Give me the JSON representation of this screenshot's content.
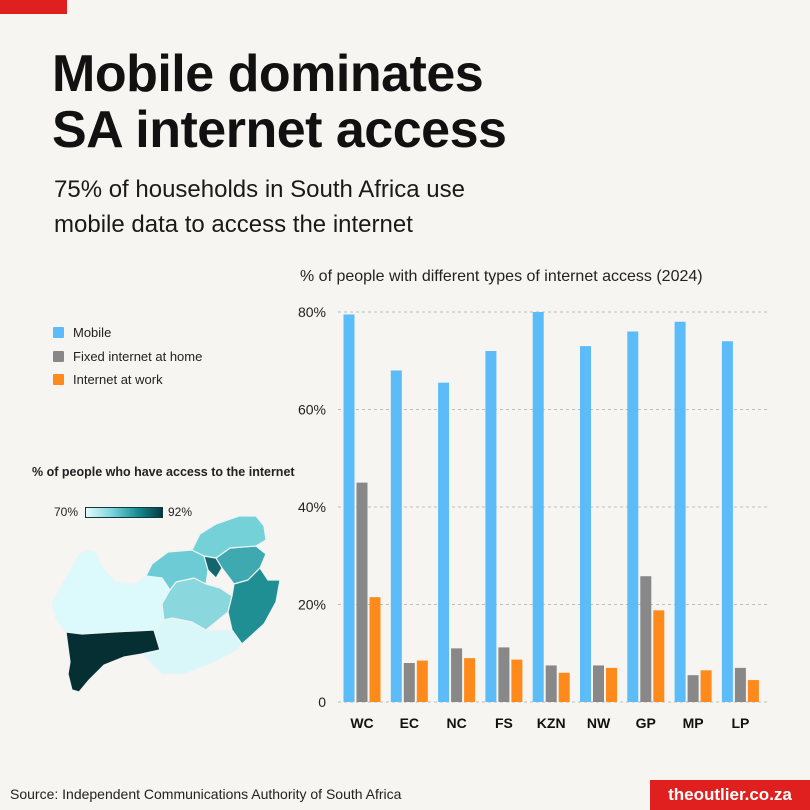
{
  "title_line1": "Mobile dominates",
  "title_line2": "SA internet access",
  "subtitle_line1": "75% of households in South Africa use",
  "subtitle_line2": "mobile data to access the internet",
  "map": {
    "title": "% of people who have access to the internet",
    "scale_min_label": "70%",
    "scale_max_label": "92%",
    "colors": {
      "WC": "#062f34",
      "EC": "#d9f7f8",
      "NC": "#dcfafb",
      "FS": "#8ad7de",
      "KZN": "#1f8f93",
      "NW": "#6ccbd4",
      "GP": "#15666c",
      "MP": "#3ea9b0",
      "LP": "#74d1d8"
    }
  },
  "colors": {
    "mobile": "#5cbcf8",
    "fixed": "#888888",
    "work": "#ff8a1c"
  },
  "chart_data": {
    "type": "bar",
    "title": "% of people with different types of internet access (2024)",
    "categories": [
      "WC",
      "EC",
      "NC",
      "FS",
      "KZN",
      "NW",
      "GP",
      "MP",
      "LP"
    ],
    "series": [
      {
        "name": "Mobile",
        "values": [
          79.5,
          68,
          65.5,
          72,
          80,
          73,
          76,
          78,
          74
        ]
      },
      {
        "name": "Fixed internet at home",
        "values": [
          45,
          8,
          11,
          11.2,
          7.5,
          7.5,
          25.8,
          5.5,
          7
        ]
      },
      {
        "name": "Internet at work",
        "values": [
          21.5,
          8.5,
          9,
          8.7,
          6,
          7,
          18.8,
          6.5,
          4.5
        ]
      }
    ],
    "ylim": [
      0,
      80
    ],
    "yticks": [
      0,
      20,
      40,
      60,
      80
    ],
    "ytick_labels": [
      "0",
      "20%",
      "40%",
      "60%",
      "80%"
    ],
    "grid": true,
    "legend_position": "left"
  },
  "source": "Source: Independent Communications Authority of South Africa",
  "brand": "theoutlier.co.za"
}
